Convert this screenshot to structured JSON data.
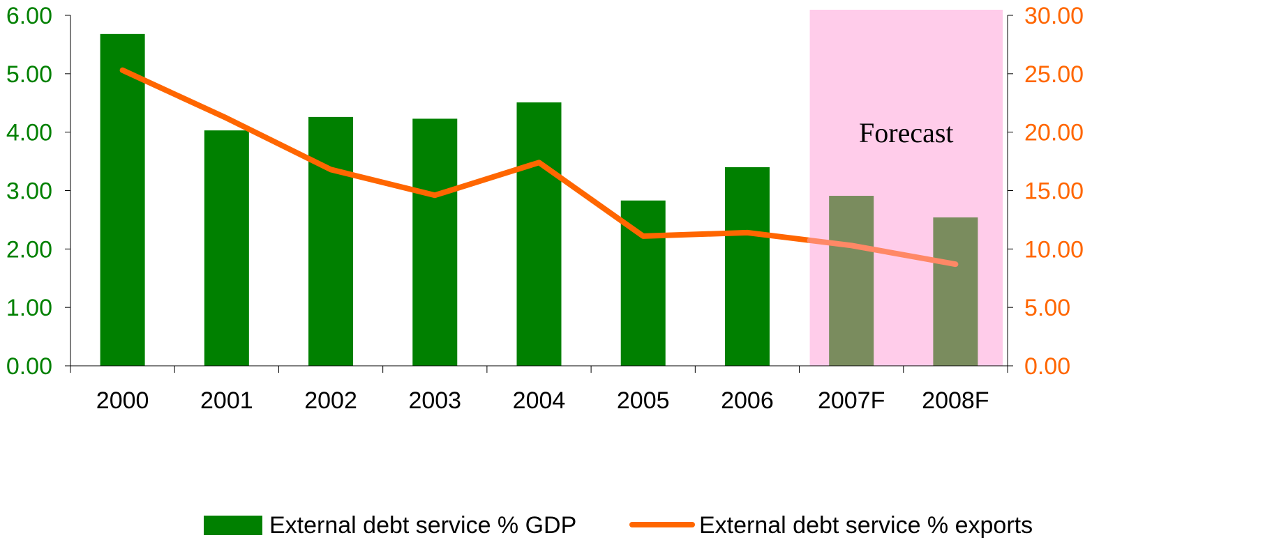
{
  "chart_data": {
    "type": "bar",
    "categories": [
      "2000",
      "2001",
      "2002",
      "2003",
      "2004",
      "2005",
      "2006",
      "2007F",
      "2008F"
    ],
    "series": [
      {
        "name": "External debt service % GDP",
        "type": "bar",
        "axis": "left",
        "values": [
          5.68,
          4.03,
          4.26,
          4.23,
          4.51,
          2.83,
          3.4,
          2.91,
          2.54
        ],
        "color": "#008000",
        "forecast_color": "#7a8c5e"
      },
      {
        "name": "External debt service % exports",
        "type": "line",
        "axis": "right",
        "values": [
          25.3,
          21.2,
          16.8,
          14.6,
          17.4,
          11.1,
          11.4,
          10.3,
          8.7
        ],
        "color": "#ff6600",
        "forecast_color": "#ff8866"
      }
    ],
    "y_left": {
      "lim": [
        0,
        6
      ],
      "ticks": [
        "0.00",
        "1.00",
        "2.00",
        "3.00",
        "4.00",
        "5.00",
        "6.00"
      ],
      "color": "#008000"
    },
    "y_right": {
      "lim": [
        0,
        30
      ],
      "ticks": [
        "0.00",
        "5.00",
        "10.00",
        "15.00",
        "20.00",
        "25.00",
        "30.00"
      ],
      "color": "#ff6600"
    },
    "forecast": {
      "label": "Forecast",
      "start_category": "2007F",
      "end_category": "2008F",
      "color": "#ffccea"
    },
    "title": "",
    "xlabel": "",
    "grid": false,
    "legend_position": "bottom"
  }
}
